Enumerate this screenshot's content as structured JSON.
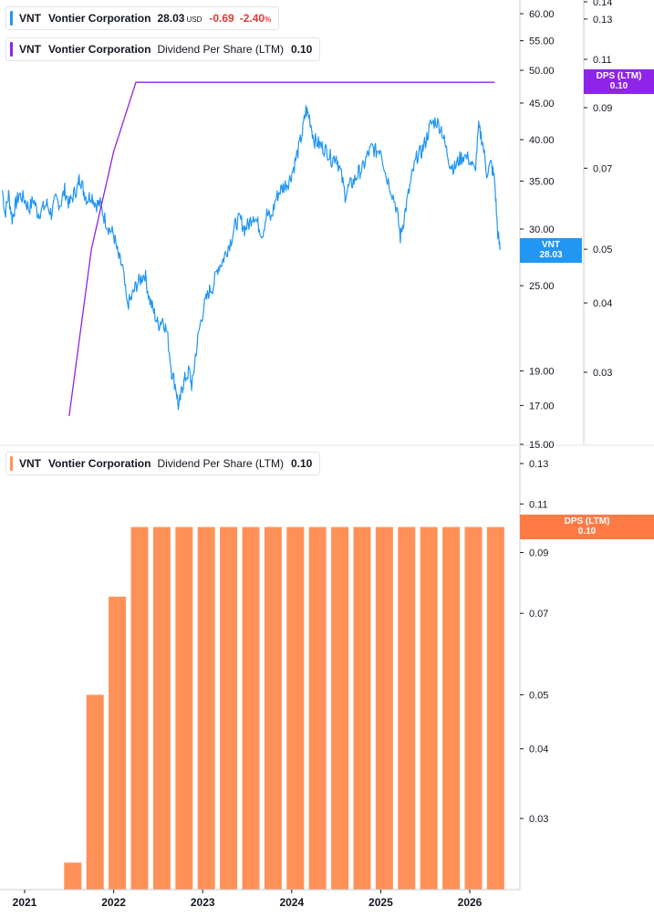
{
  "legend_price": {
    "ticker": "VNT",
    "name": "Vontier Corporation",
    "price": "28.03",
    "currency": "USD",
    "change": "-0.69",
    "change_pct": "-2.40",
    "pct_sign": "%"
  },
  "legend_dps": {
    "ticker": "VNT",
    "name": "Vontier Corporation",
    "metric": "Dividend Per Share (LTM)",
    "value": "0.10"
  },
  "legend_bottom": {
    "ticker": "VNT",
    "name": "Vontier Corporation",
    "metric": "Dividend Per Share (LTM)",
    "value": "0.10"
  },
  "tags": {
    "price": {
      "line1": "VNT",
      "line2": "28.03"
    },
    "dps_top": {
      "line1": "DPS (LTM)",
      "line2": "0.10"
    },
    "dps_bottom": {
      "line1": "DPS (LTM)",
      "line2": "0.10"
    }
  },
  "colors": {
    "price_line": "#2196f3",
    "dps_line": "#8e24e8",
    "bars": "#ff9158",
    "negative": "#e53935"
  },
  "chart_data": [
    {
      "type": "line",
      "scale": "log",
      "series": [
        {
          "name": "VNT",
          "points": [
            [
              2020.75,
              34
            ],
            [
              2020.78,
              31.5
            ],
            [
              2020.82,
              33.5
            ],
            [
              2020.86,
              31
            ],
            [
              2020.9,
              32.5
            ],
            [
              2020.94,
              33.5
            ],
            [
              2021.0,
              33
            ],
            [
              2021.05,
              32
            ],
            [
              2021.1,
              33
            ],
            [
              2021.15,
              31.5
            ],
            [
              2021.2,
              32
            ],
            [
              2021.25,
              32.5
            ],
            [
              2021.3,
              31.5
            ],
            [
              2021.35,
              33
            ],
            [
              2021.4,
              32.5
            ],
            [
              2021.45,
              34
            ],
            [
              2021.5,
              32.5
            ],
            [
              2021.55,
              33.5
            ],
            [
              2021.6,
              34.5
            ],
            [
              2021.62,
              35.5
            ],
            [
              2021.66,
              34
            ],
            [
              2021.7,
              33
            ],
            [
              2021.75,
              33.5
            ],
            [
              2021.8,
              32.5
            ],
            [
              2021.85,
              32.5
            ],
            [
              2021.9,
              31
            ],
            [
              2021.95,
              30
            ],
            [
              2022.0,
              29.5
            ],
            [
              2022.05,
              27.5
            ],
            [
              2022.1,
              26.5
            ],
            [
              2022.15,
              23.5
            ],
            [
              2022.2,
              24
            ],
            [
              2022.25,
              25
            ],
            [
              2022.3,
              25.5
            ],
            [
              2022.35,
              26
            ],
            [
              2022.4,
              24
            ],
            [
              2022.45,
              23
            ],
            [
              2022.5,
              22
            ],
            [
              2022.55,
              22.5
            ],
            [
              2022.6,
              21.5
            ],
            [
              2022.65,
              19
            ],
            [
              2022.7,
              18
            ],
            [
              2022.73,
              16.8
            ],
            [
              2022.77,
              18
            ],
            [
              2022.8,
              18.5
            ],
            [
              2022.85,
              19
            ],
            [
              2022.88,
              18
            ],
            [
              2022.92,
              20
            ],
            [
              2022.97,
              22
            ],
            [
              2023.02,
              23.5
            ],
            [
              2023.07,
              24.5
            ],
            [
              2023.12,
              25
            ],
            [
              2023.17,
              26.5
            ],
            [
              2023.22,
              27
            ],
            [
              2023.27,
              28
            ],
            [
              2023.32,
              29
            ],
            [
              2023.37,
              30.5
            ],
            [
              2023.42,
              31
            ],
            [
              2023.47,
              30
            ],
            [
              2023.52,
              30.5
            ],
            [
              2023.57,
              31.5
            ],
            [
              2023.62,
              30.5
            ],
            [
              2023.67,
              29.5
            ],
            [
              2023.72,
              31.5
            ],
            [
              2023.77,
              31
            ],
            [
              2023.82,
              33
            ],
            [
              2023.87,
              34
            ],
            [
              2023.92,
              34.5
            ],
            [
              2023.97,
              35
            ],
            [
              2024.02,
              36.5
            ],
            [
              2024.07,
              38.5
            ],
            [
              2024.12,
              41
            ],
            [
              2024.16,
              44
            ],
            [
              2024.2,
              43
            ],
            [
              2024.25,
              40
            ],
            [
              2024.3,
              39.5
            ],
            [
              2024.35,
              39
            ],
            [
              2024.4,
              38.5
            ],
            [
              2024.45,
              37.5
            ],
            [
              2024.5,
              38
            ],
            [
              2024.55,
              36
            ],
            [
              2024.6,
              33.5
            ],
            [
              2024.65,
              34.5
            ],
            [
              2024.7,
              35
            ],
            [
              2024.75,
              36
            ],
            [
              2024.8,
              36.5
            ],
            [
              2024.85,
              38
            ],
            [
              2024.9,
              39
            ],
            [
              2024.95,
              38.5
            ],
            [
              2025.0,
              39
            ],
            [
              2025.05,
              36
            ],
            [
              2025.12,
              34
            ],
            [
              2025.18,
              32
            ],
            [
              2025.22,
              29.2
            ],
            [
              2025.26,
              31
            ],
            [
              2025.31,
              33.5
            ],
            [
              2025.36,
              36
            ],
            [
              2025.41,
              38
            ],
            [
              2025.46,
              38.5
            ],
            [
              2025.51,
              40
            ],
            [
              2025.56,
              42
            ],
            [
              2025.62,
              42.5
            ],
            [
              2025.68,
              41.5
            ],
            [
              2025.73,
              39
            ],
            [
              2025.78,
              37
            ],
            [
              2025.83,
              36.5
            ],
            [
              2025.88,
              37.5
            ],
            [
              2025.93,
              38
            ],
            [
              2026.0,
              37.5
            ],
            [
              2026.06,
              36
            ],
            [
              2026.1,
              41.5
            ],
            [
              2026.14,
              40
            ],
            [
              2026.19,
              36
            ],
            [
              2026.24,
              37
            ],
            [
              2026.28,
              35
            ],
            [
              2026.31,
              30
            ],
            [
              2026.34,
              28.03
            ]
          ]
        },
        {
          "name": "Dividend Per Share (LTM)",
          "axis": "dps",
          "points": [
            [
              2021.5,
              0.025
            ],
            [
              2021.75,
              0.05
            ],
            [
              2022.0,
              0.075
            ],
            [
              2022.25,
              0.1
            ],
            [
              2026.28,
              0.1
            ]
          ]
        }
      ],
      "price_axis": {
        "ticks": [
          "60.00",
          "55.00",
          "50.00",
          "45.00",
          "40.00",
          "35.00",
          "30.00",
          "25.00",
          "19.00",
          "17.00",
          "15.00"
        ],
        "tick_values": [
          60,
          55,
          50,
          45,
          40,
          35,
          30,
          25,
          19,
          17,
          15
        ]
      },
      "dps_axis": {
        "ticks": [
          "0.14",
          "0.13",
          "0.11",
          "0.09",
          "0.07",
          "0.05",
          "0.04",
          "0.03"
        ],
        "tick_values": [
          0.14,
          0.13,
          0.11,
          0.09,
          0.07,
          0.05,
          0.04,
          0.03
        ]
      }
    },
    {
      "type": "bar",
      "scale": "log",
      "series": [
        {
          "name": "Dividend Per Share (LTM)",
          "x": [
            2021.5,
            2021.75,
            2022.0,
            2022.25,
            2022.5,
            2022.75,
            2023.0,
            2023.25,
            2023.5,
            2023.75,
            2024.0,
            2024.25,
            2024.5,
            2024.75,
            2025.0,
            2025.25,
            2025.5,
            2025.75,
            2026.0,
            2026.25
          ],
          "values": [
            0.025,
            0.05,
            0.075,
            0.1,
            0.1,
            0.1,
            0.1,
            0.1,
            0.1,
            0.1,
            0.1,
            0.1,
            0.1,
            0.1,
            0.1,
            0.1,
            0.1,
            0.1,
            0.1,
            0.1
          ]
        }
      ],
      "y_axis": {
        "ticks": [
          "0.13",
          "0.11",
          "0.09",
          "0.07",
          "0.05",
          "0.04",
          "0.03"
        ],
        "tick_values": [
          0.13,
          0.11,
          0.09,
          0.07,
          0.05,
          0.04,
          0.03
        ]
      },
      "x_axis": {
        "years": [
          "2021",
          "2022",
          "2023",
          "2024",
          "2025",
          "2026"
        ],
        "year_values": [
          2021,
          2022,
          2023,
          2024,
          2025,
          2026
        ]
      }
    }
  ]
}
